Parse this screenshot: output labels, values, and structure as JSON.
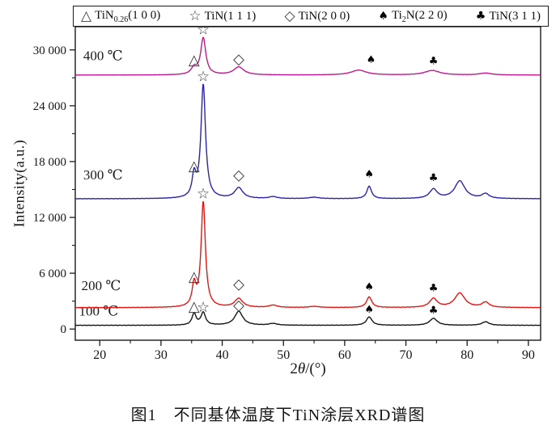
{
  "figure": {
    "caption": "图1　不同基体温度下TiN涂层XRD谱图"
  },
  "chart_data": {
    "type": "line",
    "title": "",
    "xlabel": "2θ/(°)",
    "xlabel_parts": {
      "num": "2",
      "theta": "θ",
      "rest": "/(°)"
    },
    "ylabel": "Intensity(a.u.)",
    "xlim": [
      16,
      92
    ],
    "ylim": [
      -1200,
      32500
    ],
    "grid": false,
    "legend_position": "top",
    "x_ticks_major": [
      20,
      30,
      40,
      50,
      60,
      70,
      80,
      90
    ],
    "x_ticks_minor": [
      25,
      35,
      45,
      55,
      65,
      75,
      85
    ],
    "y_ticks_major": [
      {
        "v": 0,
        "label": "0"
      },
      {
        "v": 6000,
        "label": "6 000"
      },
      {
        "v": 12000,
        "label": "12 000"
      },
      {
        "v": 18000,
        "label": "18 000"
      },
      {
        "v": 24000,
        "label": "24 000"
      },
      {
        "v": 30000,
        "label": "30 000"
      }
    ],
    "y_ticks_minor": [
      3000,
      9000,
      15000,
      21000,
      27000
    ],
    "legend": [
      {
        "symbol": "△",
        "filled": false,
        "pre": "TiN",
        "sub": "0.26",
        "post": "(1 0 0)"
      },
      {
        "symbol": "☆",
        "filled": false,
        "pre": "TiN",
        "sub": "",
        "post": "(1 1 1)"
      },
      {
        "symbol": "◇",
        "filled": false,
        "pre": "TiN",
        "sub": "",
        "post": "(2 0 0)"
      },
      {
        "symbol": "♠",
        "filled": true,
        "pre": "Ti",
        "sub": "2",
        "post": "N(2 2 0)"
      },
      {
        "symbol": "♣",
        "filled": true,
        "pre": "TiN",
        "sub": "",
        "post": "(3 1 1)"
      }
    ],
    "series": [
      {
        "name": "100 ℃",
        "color": "#141414",
        "baseline": 400,
        "noise": 22,
        "peaks": [
          [
            35.4,
            1250,
            0.4
          ],
          [
            36.9,
            1350,
            0.45
          ],
          [
            42.7,
            1500,
            0.8
          ],
          [
            48.3,
            180,
            0.8
          ],
          [
            64.0,
            900,
            0.55
          ],
          [
            74.5,
            750,
            0.75
          ],
          [
            83.0,
            380,
            0.7
          ]
        ],
        "markers": [
          [
            "△",
            35.4,
            2400,
            false
          ],
          [
            "☆",
            36.9,
            2300,
            false
          ],
          [
            "◇",
            42.7,
            2550,
            false
          ],
          [
            "♠",
            64.0,
            2050,
            true
          ],
          [
            "♣",
            74.5,
            1950,
            true
          ]
        ],
        "label_pos": [
          16.6,
          1450
        ]
      },
      {
        "name": "200 ℃",
        "color": "#e81410",
        "baseline": 2300,
        "noise": 22,
        "peaks": [
          [
            35.4,
            2300,
            0.38
          ],
          [
            36.9,
            11300,
            0.42
          ],
          [
            42.7,
            950,
            0.8
          ],
          [
            48.3,
            250,
            0.8
          ],
          [
            55.0,
            120,
            1.0
          ],
          [
            64.0,
            1150,
            0.5
          ],
          [
            74.5,
            950,
            0.75
          ],
          [
            78.8,
            1550,
            1.0
          ],
          [
            83.0,
            550,
            0.7
          ]
        ],
        "markers": [
          [
            "△",
            35.4,
            5600,
            false
          ],
          [
            "☆",
            36.9,
            14500,
            false
          ],
          [
            "◇",
            42.7,
            4800,
            false
          ],
          [
            "♠",
            64.0,
            4500,
            true
          ],
          [
            "♣",
            74.5,
            4350,
            true
          ]
        ],
        "label_pos": [
          17.0,
          4200
        ]
      },
      {
        "name": "300 ℃",
        "color": "#2a23ae",
        "baseline": 14000,
        "noise": 22,
        "peaks": [
          [
            35.4,
            2300,
            0.38
          ],
          [
            36.9,
            12200,
            0.45
          ],
          [
            42.7,
            1150,
            0.8
          ],
          [
            48.3,
            200,
            0.8
          ],
          [
            55.0,
            150,
            1.0
          ],
          [
            64.0,
            1350,
            0.45
          ],
          [
            74.5,
            1000,
            0.75
          ],
          [
            78.8,
            1900,
            1.0
          ],
          [
            83.0,
            500,
            0.7
          ]
        ],
        "markers": [
          [
            "△",
            35.4,
            17500,
            false
          ],
          [
            "☆",
            36.9,
            27100,
            false
          ],
          [
            "◇",
            42.7,
            16500,
            false
          ],
          [
            "♠",
            64.0,
            16600,
            true
          ],
          [
            "♣",
            74.5,
            16200,
            true
          ]
        ],
        "label_pos": [
          17.3,
          16100
        ]
      },
      {
        "name": "400 ℃",
        "color": "#c0188e",
        "baseline": 27300,
        "noise": 16,
        "peaks": [
          [
            35.4,
            700,
            0.55
          ],
          [
            36.9,
            3950,
            0.5
          ],
          [
            42.7,
            850,
            1.0
          ],
          [
            62.3,
            520,
            1.5
          ],
          [
            74.3,
            480,
            1.5
          ],
          [
            83.0,
            200,
            1.2
          ]
        ],
        "markers": [
          [
            "△",
            35.4,
            28900,
            false
          ],
          [
            "☆",
            36.9,
            32150,
            false
          ],
          [
            "◇",
            42.7,
            29000,
            false
          ],
          [
            "♠",
            64.3,
            28900,
            true
          ],
          [
            "♣",
            74.5,
            28750,
            true
          ]
        ],
        "label_pos": [
          17.3,
          28900
        ]
      }
    ]
  }
}
